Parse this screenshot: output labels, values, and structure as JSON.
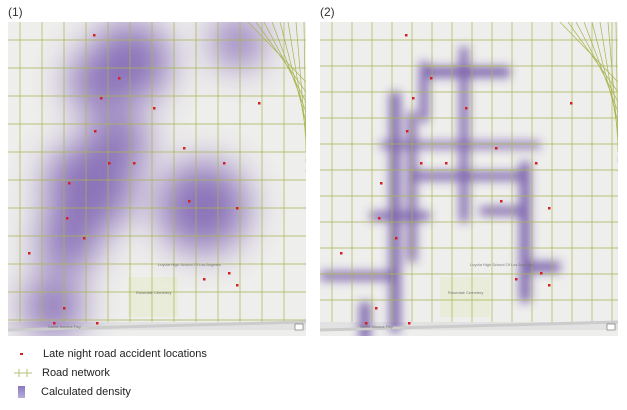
{
  "panels": [
    {
      "label": "(1)",
      "map_labels": [
        "Rosedale Cemetery",
        "Loyola High School Of Los Angeles",
        "Santa Monica Fwy"
      ]
    },
    {
      "label": "(2)",
      "map_labels": [
        "Rosedale Cemetery",
        "Loyola High School Of Los Angeles",
        "Santa Monica Fwy"
      ]
    }
  ],
  "legend": {
    "accidents": "Late night road accident locations",
    "roads": "Road network",
    "density": "Calculated density"
  },
  "colors": {
    "accident": "#d42020",
    "road": "#9aaa3a",
    "density": "#6a4aa8",
    "background": "#eeeeec"
  }
}
